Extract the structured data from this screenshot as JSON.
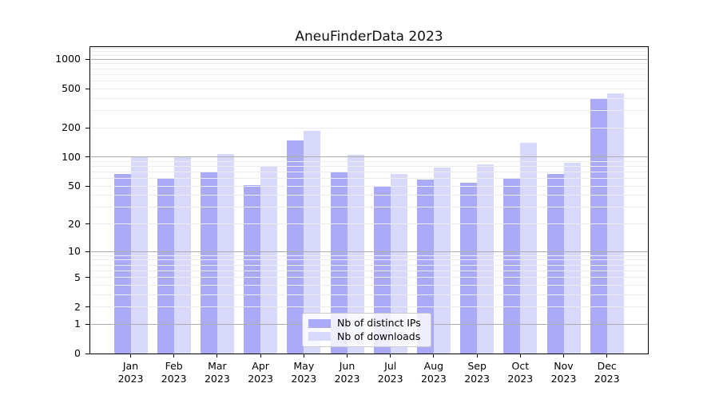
{
  "chart_data": {
    "type": "bar",
    "title": "AneuFinderData 2023",
    "xlabel": "",
    "ylabel": "",
    "categories": [
      [
        "Jan",
        "2023"
      ],
      [
        "Feb",
        "2023"
      ],
      [
        "Mar",
        "2023"
      ],
      [
        "Apr",
        "2023"
      ],
      [
        "May",
        "2023"
      ],
      [
        "Jun",
        "2023"
      ],
      [
        "Jul",
        "2023"
      ],
      [
        "Aug",
        "2023"
      ],
      [
        "Sep",
        "2023"
      ],
      [
        "Oct",
        "2023"
      ],
      [
        "Nov",
        "2023"
      ],
      [
        "Dec",
        "2023"
      ]
    ],
    "series": [
      {
        "name": "Nb of distinct IPs",
        "color": "#aaaaf9",
        "values": [
          67,
          60,
          71,
          51,
          148,
          69,
          49,
          59,
          54,
          61,
          67,
          390
        ]
      },
      {
        "name": "Nb of downloads",
        "color": "#d8d8fa",
        "values": [
          100,
          100,
          107,
          80,
          185,
          105,
          67,
          78,
          84,
          140,
          88,
          445
        ]
      }
    ],
    "y_axis": {
      "scale": "log1p",
      "ticks": [
        0,
        1,
        2,
        5,
        10,
        20,
        50,
        100,
        200,
        500,
        1000
      ],
      "major_gridlines": [
        1,
        10,
        100,
        1000
      ],
      "minor_gridlines": [
        2,
        3,
        4,
        5,
        6,
        7,
        8,
        9,
        20,
        30,
        40,
        50,
        60,
        70,
        80,
        90,
        200,
        300,
        400,
        500,
        600,
        700,
        800,
        900,
        1100,
        1200,
        1300
      ],
      "ylim": [
        0,
        1330
      ],
      "grid": true
    },
    "legend": {
      "position": "lower center inside",
      "entries": [
        "Nb of distinct IPs",
        "Nb of downloads"
      ]
    }
  }
}
